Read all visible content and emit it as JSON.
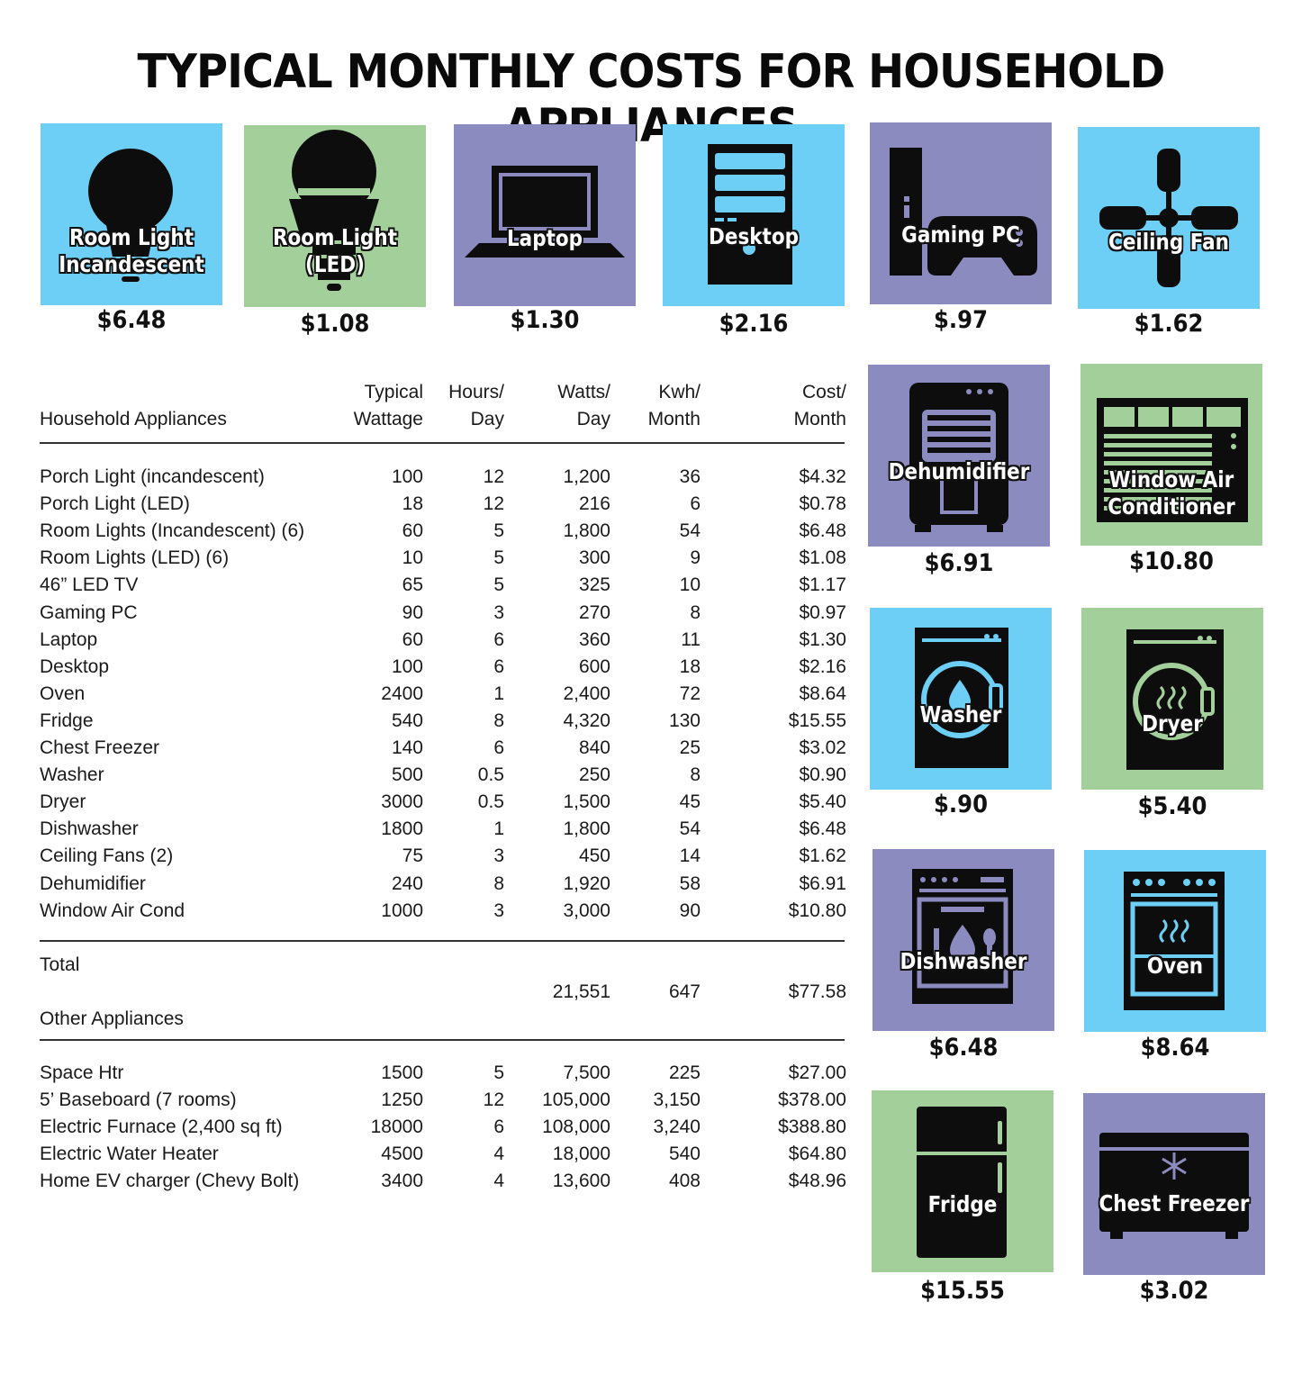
{
  "title": "TYPICAL MONTHLY COSTS FOR HOUSEHOLD APPLIANCES",
  "colors": {
    "blue": "#6dcff6",
    "green": "#a3cf9b",
    "purple": "#8b8bbf",
    "icon": "#0d0d0d"
  },
  "tiles": [
    {
      "label1": "Room Light",
      "label2": "Incandescent",
      "price": "$6.48",
      "icon": "lightbulb-icon"
    },
    {
      "label1": "Room Light",
      "label2": "(LED)",
      "price": "$1.08",
      "icon": "led-bulb-icon"
    },
    {
      "label1": "Laptop",
      "label2": "",
      "price": "$1.30",
      "icon": "laptop-icon"
    },
    {
      "label1": "Desktop",
      "label2": "",
      "price": "$2.16",
      "icon": "desktop-tower-icon"
    },
    {
      "label1": "Gaming PC",
      "label2": "",
      "price": "$.97",
      "icon": "gamepad-icon"
    },
    {
      "label1": "Ceiling Fan",
      "label2": "",
      "price": "$1.62",
      "icon": "ceiling-fan-icon"
    },
    {
      "label1": "Dehumidifier",
      "label2": "",
      "price": "$6.91",
      "icon": "dehumidifier-icon"
    },
    {
      "label1": "Window Air",
      "label2": "Conditioner",
      "price": "$10.80",
      "icon": "air-conditioner-icon"
    },
    {
      "label1": "Washer",
      "label2": "",
      "price": "$.90",
      "icon": "washer-icon"
    },
    {
      "label1": "Dryer",
      "label2": "",
      "price": "$5.40",
      "icon": "dryer-icon"
    },
    {
      "label1": "Dishwasher",
      "label2": "",
      "price": "$6.48",
      "icon": "dishwasher-icon"
    },
    {
      "label1": "Oven",
      "label2": "",
      "price": "$8.64",
      "icon": "oven-icon"
    },
    {
      "label1": "Fridge",
      "label2": "",
      "price": "$15.55",
      "icon": "fridge-icon"
    },
    {
      "label1": "Chest Freezer",
      "label2": "",
      "price": "$3.02",
      "icon": "chest-freezer-icon"
    }
  ],
  "table": {
    "header_top": [
      "",
      "Typical",
      "Hours/",
      "Watts/",
      "Kwh/",
      "Cost/"
    ],
    "header_bottom": [
      "Household Appliances",
      "Wattage",
      "Day",
      "Day",
      "Month",
      "Month"
    ],
    "rows": [
      [
        "Porch Light (incandescent)",
        "100",
        "12",
        "1,200",
        "36",
        "$4.32"
      ],
      [
        "Porch Light (LED)",
        "18",
        "12",
        "216",
        "6",
        "$0.78"
      ],
      [
        "Room Lights (Incandescent) (6)",
        "60",
        "5",
        "1,800",
        "54",
        "$6.48"
      ],
      [
        "Room Lights (LED) (6)",
        "10",
        "5",
        "300",
        "9",
        "$1.08"
      ],
      [
        "46” LED TV",
        "65",
        "5",
        "325",
        "10",
        "$1.17"
      ],
      [
        "Gaming PC",
        "90",
        "3",
        "270",
        "8",
        "$0.97"
      ],
      [
        "Laptop",
        "60",
        "6",
        "360",
        "11",
        "$1.30"
      ],
      [
        "Desktop",
        "100",
        "6",
        "600",
        "18",
        "$2.16"
      ],
      [
        "Oven",
        "2400",
        "1",
        "2,400",
        "72",
        "$8.64"
      ],
      [
        "Fridge",
        "540",
        "8",
        "4,320",
        "130",
        "$15.55"
      ],
      [
        "Chest Freezer",
        "140",
        "6",
        "840",
        "25",
        "$3.02"
      ],
      [
        "Washer",
        "500",
        "0.5",
        "250",
        "8",
        "$0.90"
      ],
      [
        "Dryer",
        "3000",
        "0.5",
        "1,500",
        "45",
        "$5.40"
      ],
      [
        "Dishwasher",
        "1800",
        "1",
        "1,800",
        "54",
        "$6.48"
      ],
      [
        "Ceiling Fans (2)",
        "75",
        "3",
        "450",
        "14",
        "$1.62"
      ],
      [
        "Dehumidifier",
        "240",
        "8",
        "1,920",
        "58",
        "$6.91"
      ],
      [
        "Window Air Cond",
        "1000",
        "3",
        "3,000",
        "90",
        "$10.80"
      ]
    ],
    "total_label": "Total",
    "total_values": [
      "21,551",
      "647",
      "$77.58"
    ],
    "other_label": "Other Appliances",
    "other_rows": [
      [
        "Space Htr",
        "1500",
        "5",
        "7,500",
        "225",
        "$27.00"
      ],
      [
        "5’ Baseboard (7 rooms)",
        "1250",
        "12",
        "105,000",
        "3,150",
        "$378.00"
      ],
      [
        "Electric Furnace (2,400 sq ft)",
        "18000",
        "6",
        "108,000",
        "3,240",
        "$388.80"
      ],
      [
        "Electric Water Heater",
        "4500",
        "4",
        "18,000",
        "540",
        "$64.80"
      ],
      [
        "Home EV charger (Chevy Bolt)",
        "3400",
        "4",
        "13,600",
        "408",
        "$48.96"
      ]
    ]
  }
}
